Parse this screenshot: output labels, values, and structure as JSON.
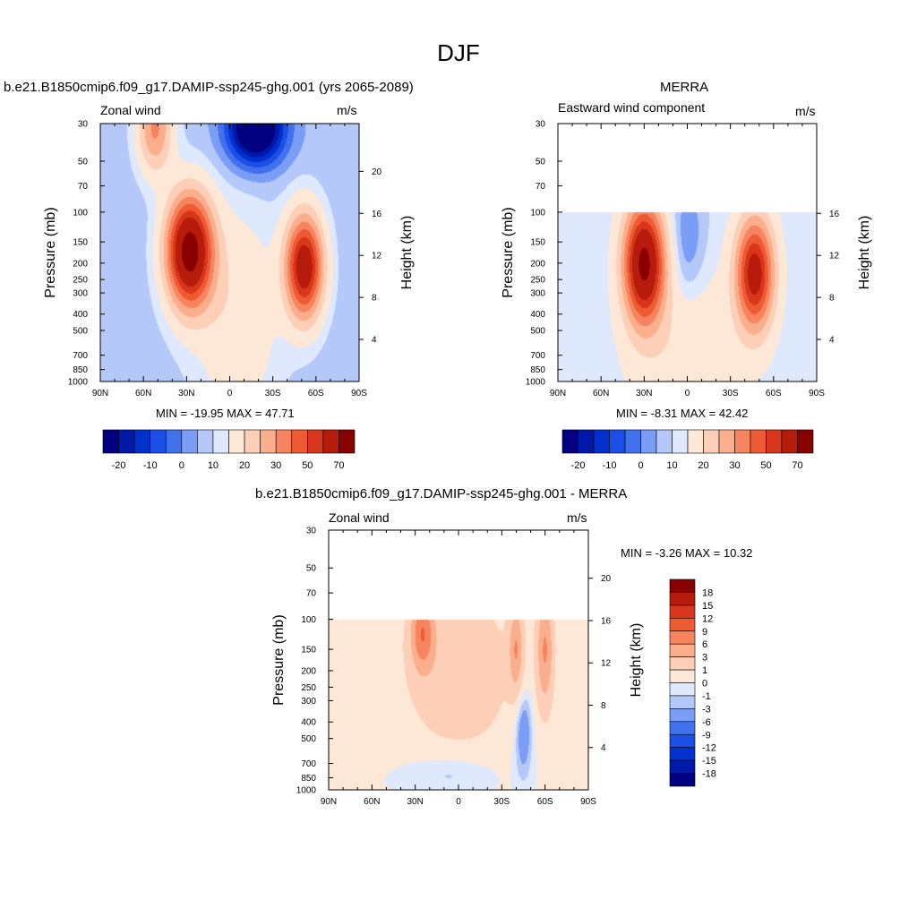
{
  "page_title": "DJF",
  "panels": [
    {
      "title": "b.e21.B1850cmip6.f09_g17.DAMIP-ssp245-ghg.001 (yrs 2065-2089)",
      "left_label": "Zonal wind",
      "units": "m/s",
      "stats": "MIN = -19.95  MAX =  47.71"
    },
    {
      "title": "MERRA",
      "left_label": "Eastward wind component",
      "units": "m/s",
      "stats": "MIN =  -8.31  MAX =  42.42"
    },
    {
      "title": "b.e21.B1850cmip6.f09_g17.DAMIP-ssp245-ghg.001 - MERRA",
      "left_label": "Zonal wind",
      "units": "m/s",
      "stats": "MIN =  -3.26  MAX =  10.32"
    }
  ],
  "chart_data": [
    {
      "type": "heatmap",
      "xlabel": "",
      "ylabel": "Pressure (mb)",
      "ylabel_right": "Height (km)",
      "x_ticks": [
        "90N",
        "60N",
        "30N",
        "0",
        "30S",
        "60S",
        "90S"
      ],
      "y_ticks": [
        30,
        50,
        70,
        100,
        150,
        200,
        250,
        300,
        400,
        500,
        700,
        850,
        1000
      ],
      "y_right_ticks": [
        4,
        8,
        12,
        16,
        20
      ],
      "ylim": [
        1000,
        30
      ],
      "y_scale": "log",
      "features": [
        {
          "lat": 28,
          "p": 175,
          "value": 47.71
        },
        {
          "lat": -52,
          "p": 210,
          "value": 40
        },
        {
          "lat": -18,
          "p": 32,
          "value": -19.95
        },
        {
          "lat": 52,
          "p": 32,
          "value": 20
        }
      ],
      "colorbar": {
        "labels": [
          -20,
          -10,
          0,
          10,
          20,
          30,
          50,
          70
        ],
        "colors": [
          "#000080",
          "#0019a8",
          "#0030ce",
          "#1b4fe6",
          "#4271ee",
          "#7a9df5",
          "#b4c8fa",
          "#dfe9fd",
          "#fde8d8",
          "#fccfb6",
          "#faae8c",
          "#f6845f",
          "#ee5a32",
          "#d8361a",
          "#b61b0b",
          "#880000"
        ]
      }
    },
    {
      "type": "heatmap",
      "xlabel": "",
      "ylabel": "Pressure (mb)",
      "ylabel_right": "Height (km)",
      "x_ticks": [
        "90N",
        "60N",
        "30N",
        "0",
        "30S",
        "60S",
        "90S"
      ],
      "y_ticks": [
        30,
        50,
        70,
        100,
        150,
        200,
        250,
        300,
        400,
        500,
        700,
        850,
        1000
      ],
      "y_right_ticks": [
        4,
        8,
        12,
        16
      ],
      "ylim": [
        1000,
        30
      ],
      "y_scale": "log",
      "data_top_pressure": 100,
      "features": [
        {
          "lat": 30,
          "p": 200,
          "value": 42.42
        },
        {
          "lat": -47,
          "p": 230,
          "value": 35
        }
      ],
      "colorbar": {
        "labels": [
          -20,
          -10,
          0,
          10,
          20,
          30,
          50,
          70
        ],
        "colors": [
          "#000080",
          "#0019a8",
          "#0030ce",
          "#1b4fe6",
          "#4271ee",
          "#7a9df5",
          "#b4c8fa",
          "#dfe9fd",
          "#fde8d8",
          "#fccfb6",
          "#faae8c",
          "#f6845f",
          "#ee5a32",
          "#d8361a",
          "#b61b0b",
          "#880000"
        ]
      }
    },
    {
      "type": "heatmap",
      "xlabel": "",
      "ylabel": "Pressure (mb)",
      "ylabel_right": "Height (km)",
      "x_ticks": [
        "90N",
        "60N",
        "30N",
        "0",
        "30S",
        "60S",
        "90S"
      ],
      "y_ticks": [
        30,
        50,
        70,
        100,
        150,
        200,
        250,
        300,
        400,
        500,
        700,
        850,
        1000
      ],
      "y_right_ticks": [
        4,
        8,
        12,
        16,
        20
      ],
      "ylim": [
        1000,
        30
      ],
      "y_scale": "log",
      "data_top_pressure": 100,
      "features": [
        {
          "lat": 25,
          "p": 120,
          "value": 10.32
        },
        {
          "lat": -60,
          "p": 150,
          "value": 9
        },
        {
          "lat": -40,
          "p": 150,
          "value": 8
        },
        {
          "lat": -45,
          "p": 400,
          "value": -3.26
        }
      ],
      "colorbar": {
        "labels": [
          18,
          15,
          12,
          9,
          6,
          3,
          1,
          0,
          -1,
          -3,
          -6,
          -9,
          -12,
          -15,
          -18
        ],
        "colors": [
          "#880000",
          "#b61b0b",
          "#d8361a",
          "#ee5a32",
          "#f6845f",
          "#faae8c",
          "#fccfb6",
          "#fde8d8",
          "#dfe9fd",
          "#b4c8fa",
          "#7a9df5",
          "#4271ee",
          "#1b4fe6",
          "#0030ce",
          "#0019a8",
          "#000080"
        ]
      }
    }
  ]
}
